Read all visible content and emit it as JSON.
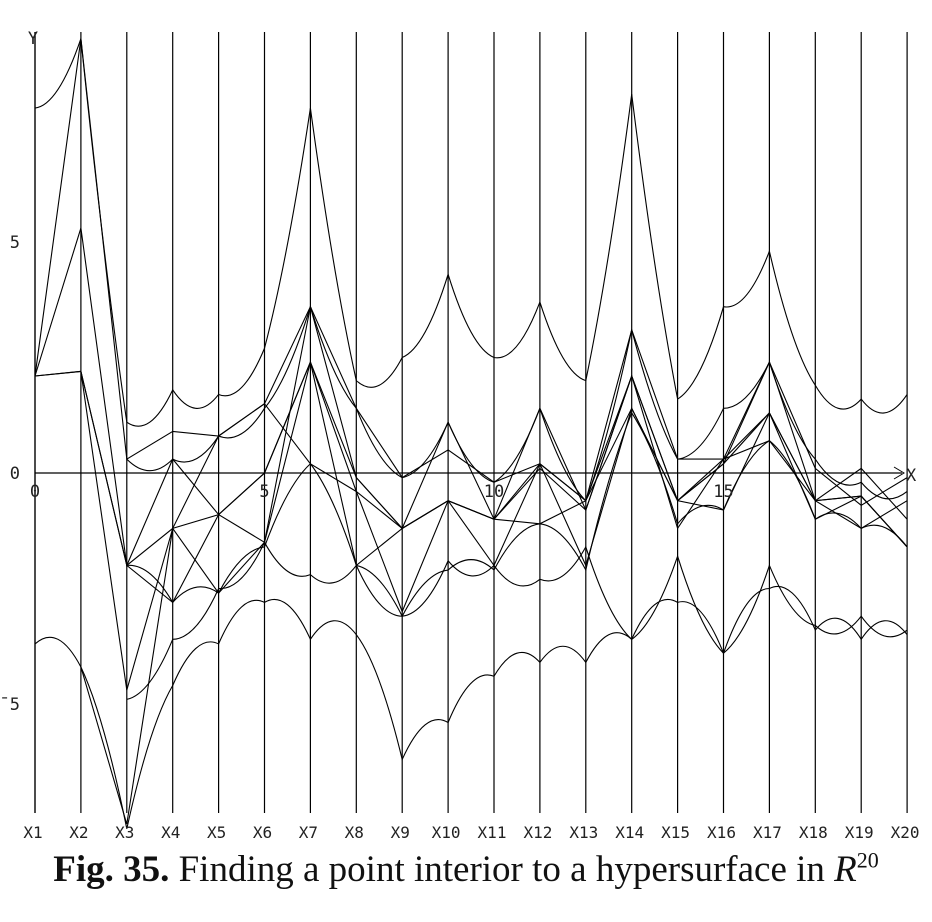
{
  "chart_data": {
    "type": "line",
    "axis": {
      "x_label": "X",
      "y_label": "Y",
      "x_range": [
        0,
        20
      ],
      "y_range": [
        -7.2,
        9.4
      ],
      "x_ticks": [
        {
          "value": 0,
          "label": "0"
        },
        {
          "value": 5,
          "label": "5"
        },
        {
          "value": 10,
          "label": "10"
        },
        {
          "value": 15,
          "label": "15"
        }
      ],
      "y_ticks": [
        {
          "value": 5,
          "label": "5"
        },
        {
          "value": 0,
          "label": "0"
        },
        {
          "value": -5,
          "label": "¯5"
        }
      ]
    },
    "variables": [
      "X1",
      "X2",
      "X3",
      "X4",
      "X5",
      "X6",
      "X7",
      "X8",
      "X9",
      "X10",
      "X11",
      "X12",
      "X13",
      "X14",
      "X15",
      "X16",
      "X17",
      "X18",
      "X19",
      "X20"
    ],
    "polylines": [
      {
        "id": "a",
        "points": [
          [
            0,
            2.1
          ],
          [
            1,
            9.4
          ],
          [
            2,
            0.3
          ],
          [
            3,
            0.9
          ],
          [
            4,
            0.8
          ],
          [
            5,
            1.5
          ],
          [
            6,
            3.6
          ],
          [
            7,
            1.4
          ],
          [
            8,
            -0.1
          ],
          [
            9,
            0.5
          ],
          [
            10,
            -0.2
          ],
          [
            11,
            0.2
          ],
          [
            12,
            -0.6
          ],
          [
            13,
            3.1
          ],
          [
            14,
            0.3
          ],
          [
            15,
            0.3
          ],
          [
            16,
            2.4
          ],
          [
            17,
            0.1
          ],
          [
            18,
            -0.7
          ],
          [
            19,
            -0.1
          ]
        ]
      },
      {
        "id": "b",
        "points": [
          [
            0,
            2.1
          ],
          [
            1,
            2.2
          ],
          [
            2,
            -2.0
          ],
          [
            3,
            -1.2
          ],
          [
            4,
            -0.9
          ],
          [
            5,
            0.0
          ],
          [
            6,
            2.4
          ],
          [
            7,
            -0.1
          ],
          [
            8,
            -1.2
          ],
          [
            9,
            -0.6
          ],
          [
            10,
            -1.0
          ],
          [
            11,
            0.1
          ],
          [
            12,
            -0.8
          ],
          [
            13,
            2.1
          ],
          [
            14,
            -0.6
          ],
          [
            15,
            -0.8
          ],
          [
            16,
            1.3
          ],
          [
            17,
            -0.6
          ],
          [
            18,
            -1.2
          ],
          [
            19,
            -0.6
          ]
        ]
      },
      {
        "id": "c",
        "points": [
          [
            0,
            2.1
          ],
          [
            1,
            5.3
          ],
          [
            2,
            -2.0
          ],
          [
            3,
            0.3
          ],
          [
            4,
            -0.9
          ],
          [
            5,
            -1.5
          ],
          [
            6,
            3.6
          ],
          [
            7,
            -0.1
          ],
          [
            8,
            -1.2
          ],
          [
            9,
            1.1
          ],
          [
            10,
            -1.0
          ],
          [
            11,
            1.4
          ],
          [
            12,
            -0.8
          ],
          [
            13,
            2.1
          ],
          [
            14,
            -1.2
          ],
          [
            15,
            0.3
          ],
          [
            16,
            1.3
          ],
          [
            17,
            -0.6
          ],
          [
            18,
            0.1
          ],
          [
            19,
            -1.0
          ]
        ]
      },
      {
        "id": "d",
        "points": [
          [
            0,
            2.1
          ],
          [
            1,
            2.2
          ],
          [
            2,
            -4.7
          ],
          [
            3,
            -1.2
          ],
          [
            4,
            0.8
          ],
          [
            5,
            1.5
          ],
          [
            6,
            0.2
          ],
          [
            7,
            -0.4
          ],
          [
            8,
            -1.2
          ],
          [
            9,
            -0.6
          ],
          [
            10,
            -1.0
          ],
          [
            11,
            0.2
          ],
          [
            12,
            -0.6
          ],
          [
            13,
            1.4
          ],
          [
            14,
            -0.6
          ],
          [
            15,
            0.3
          ],
          [
            16,
            0.7
          ],
          [
            17,
            -0.6
          ],
          [
            18,
            -0.5
          ],
          [
            19,
            -1.6
          ]
        ]
      },
      {
        "id": "e",
        "points": [
          [
            1,
            2.2
          ],
          [
            2,
            -2.0
          ],
          [
            3,
            -2.8
          ],
          [
            4,
            -0.9
          ],
          [
            5,
            0.0
          ],
          [
            6,
            2.4
          ],
          [
            7,
            -2.0
          ],
          [
            8,
            -1.2
          ],
          [
            9,
            -0.6
          ],
          [
            10,
            -1.0
          ],
          [
            11,
            -1.1
          ],
          [
            12,
            -0.6
          ],
          [
            13,
            2.1
          ],
          [
            14,
            -0.6
          ],
          [
            15,
            0.2
          ],
          [
            16,
            1.3
          ],
          [
            17,
            -1.0
          ],
          [
            18,
            -0.5
          ],
          [
            19,
            -1.6
          ]
        ]
      },
      {
        "id": "f",
        "points": [
          [
            1,
            -4.2
          ],
          [
            2,
            -7.6
          ],
          [
            3,
            -1.2
          ],
          [
            4,
            -2.6
          ],
          [
            5,
            -1.5
          ],
          [
            6,
            2.4
          ],
          [
            7,
            -0.4
          ],
          [
            8,
            -3.0
          ],
          [
            9,
            -0.6
          ],
          [
            10,
            -2.0
          ],
          [
            11,
            0.2
          ],
          [
            12,
            -2.0
          ],
          [
            13,
            1.4
          ],
          [
            14,
            -0.6
          ],
          [
            15,
            0.2
          ],
          [
            16,
            2.4
          ],
          [
            17,
            -0.6
          ],
          [
            18,
            -0.5
          ],
          [
            19,
            -1.6
          ]
        ]
      }
    ],
    "curves": [
      {
        "id": "upper-envelope",
        "points": [
          [
            0,
            7.9
          ],
          [
            1,
            9.4
          ],
          [
            2,
            1.1
          ],
          [
            3,
            1.8
          ],
          [
            4,
            1.7
          ],
          [
            5,
            2.7
          ],
          [
            6,
            7.9
          ],
          [
            7,
            2.0
          ],
          [
            8,
            2.5
          ],
          [
            9,
            4.3
          ],
          [
            10,
            2.5
          ],
          [
            11,
            3.7
          ],
          [
            12,
            2.0
          ],
          [
            13,
            8.2
          ],
          [
            14,
            1.6
          ],
          [
            15,
            3.6
          ],
          [
            16,
            4.8
          ],
          [
            17,
            1.9
          ],
          [
            18,
            1.6
          ],
          [
            19,
            1.7
          ]
        ],
        "sag": 0.7
      },
      {
        "id": "lower-envelope",
        "points": [
          [
            0,
            -3.7
          ],
          [
            1,
            -4.2
          ],
          [
            2,
            -7.7
          ],
          [
            3,
            -4.6
          ],
          [
            4,
            -3.7
          ],
          [
            5,
            -2.8
          ],
          [
            6,
            -3.6
          ],
          [
            7,
            -3.5
          ],
          [
            8,
            -6.2
          ],
          [
            9,
            -5.4
          ],
          [
            10,
            -4.4
          ],
          [
            11,
            -4.1
          ],
          [
            12,
            -4.1
          ],
          [
            13,
            -3.6
          ],
          [
            14,
            -2.8
          ],
          [
            15,
            -3.9
          ],
          [
            16,
            -2.5
          ],
          [
            17,
            -3.4
          ],
          [
            18,
            -3.6
          ],
          [
            19,
            -3.5
          ]
        ],
        "sag": -0.7
      },
      {
        "id": "mid-upper",
        "points": [
          [
            2,
            0.3
          ],
          [
            3,
            0.3
          ],
          [
            4,
            0.8
          ],
          [
            5,
            1.4
          ],
          [
            6,
            3.6
          ],
          [
            7,
            1.4
          ],
          [
            8,
            -0.1
          ],
          [
            9,
            1.1
          ],
          [
            10,
            -0.2
          ],
          [
            11,
            1.4
          ],
          [
            12,
            -0.6
          ],
          [
            13,
            3.1
          ],
          [
            14,
            0.3
          ],
          [
            15,
            1.4
          ],
          [
            16,
            2.4
          ],
          [
            17,
            0.3
          ],
          [
            18,
            -0.2
          ],
          [
            19,
            -0.4
          ]
        ],
        "sag": 0.5
      },
      {
        "id": "mid-lower",
        "points": [
          [
            2,
            -2.0
          ],
          [
            3,
            -2.8
          ],
          [
            4,
            -2.6
          ],
          [
            5,
            -1.6
          ],
          [
            6,
            0.2
          ],
          [
            7,
            -2.0
          ],
          [
            8,
            -3.1
          ],
          [
            9,
            -2.1
          ],
          [
            10,
            -2.1
          ],
          [
            11,
            -1.1
          ],
          [
            12,
            -2.1
          ],
          [
            13,
            1.3
          ],
          [
            14,
            -1.1
          ],
          [
            15,
            -0.8
          ],
          [
            16,
            0.7
          ],
          [
            17,
            -1.0
          ],
          [
            18,
            -1.2
          ],
          [
            19,
            -1.6
          ]
        ],
        "sag": -0.45
      },
      {
        "id": "mid-trough",
        "points": [
          [
            2,
            -4.9
          ],
          [
            3,
            -3.6
          ],
          [
            4,
            -2.5
          ],
          [
            5,
            -1.5
          ],
          [
            6,
            -2.2
          ],
          [
            7,
            -2.0
          ],
          [
            8,
            -3.1
          ],
          [
            9,
            -1.9
          ],
          [
            10,
            -2.0
          ],
          [
            11,
            -2.3
          ],
          [
            12,
            -1.6
          ],
          [
            13,
            -3.6
          ],
          [
            14,
            -1.8
          ],
          [
            15,
            -3.9
          ],
          [
            16,
            -2.0
          ],
          [
            17,
            -3.3
          ],
          [
            18,
            -3.1
          ],
          [
            19,
            -3.4
          ]
        ],
        "sag": 0.55
      }
    ],
    "caption": {
      "label": "Fig. 35.",
      "text": "Finding a point interior to a hypersurface in",
      "math": "R",
      "superscript": "20"
    }
  }
}
